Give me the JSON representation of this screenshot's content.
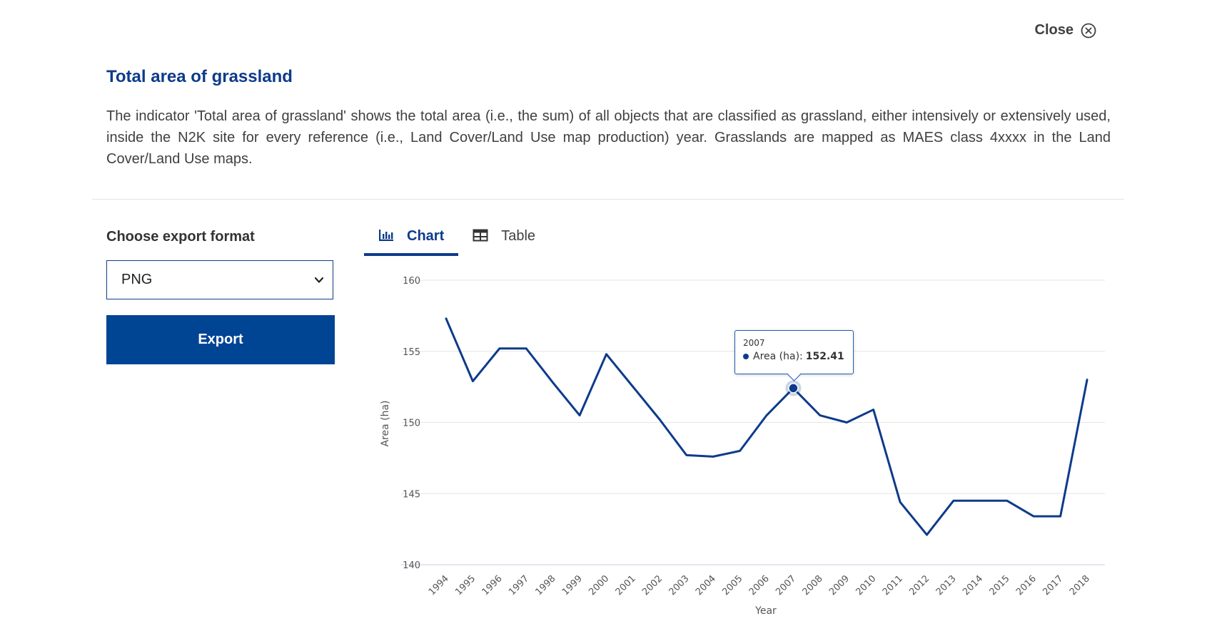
{
  "header": {
    "close_label": "Close",
    "close_icon": "close-circle-icon"
  },
  "indicator": {
    "title": "Total area of grassland",
    "description": "The indicator 'Total area of grassland' shows the total area (i.e., the sum) of all objects that are classified as grassland, either intensively or extensively used, inside the N2K site for every reference (i.e., Land Cover/Land Use map production) year. Grasslands are mapped as MAES class 4xxxx in the Land Cover/Land Use maps."
  },
  "export": {
    "label": "Choose export format",
    "selected_format": "PNG",
    "button_label": "Export"
  },
  "tabs": [
    {
      "label": "Chart",
      "icon": "bar-chart-icon",
      "active": true
    },
    {
      "label": "Table",
      "icon": "table-icon",
      "active": false
    }
  ],
  "colors": {
    "primary": "#004494",
    "title": "#0d3b8b",
    "line": "#0d3b8b",
    "grid": "#e6e6e6"
  },
  "tooltip": {
    "year": "2007",
    "series_label": "Area (ha):",
    "value": "152.41"
  },
  "chart_data": {
    "type": "line",
    "xlabel": "Year",
    "ylabel": "Area (ha)",
    "ylim": [
      140,
      160
    ],
    "yticks": [
      "140",
      "145",
      "150",
      "155",
      "160"
    ],
    "grid": true,
    "legend": "none",
    "x": [
      "1994",
      "1995",
      "1996",
      "1997",
      "1998",
      "1999",
      "2000",
      "2001",
      "2002",
      "2003",
      "2004",
      "2005",
      "2006",
      "2007",
      "2008",
      "2009",
      "2010",
      "2011",
      "2012",
      "2013",
      "2014",
      "2015",
      "2016",
      "2017",
      "2018"
    ],
    "series": [
      {
        "values": [
          157.3,
          152.9,
          155.2,
          155.2,
          152.8,
          150.5,
          154.8,
          152.5,
          150.2,
          147.7,
          147.6,
          148.0,
          150.5,
          152.41,
          150.5,
          150.0,
          150.9,
          144.4,
          142.1,
          144.5,
          144.5,
          144.5,
          143.4,
          143.4,
          153.0
        ]
      }
    ],
    "highlight_index": 13
  }
}
